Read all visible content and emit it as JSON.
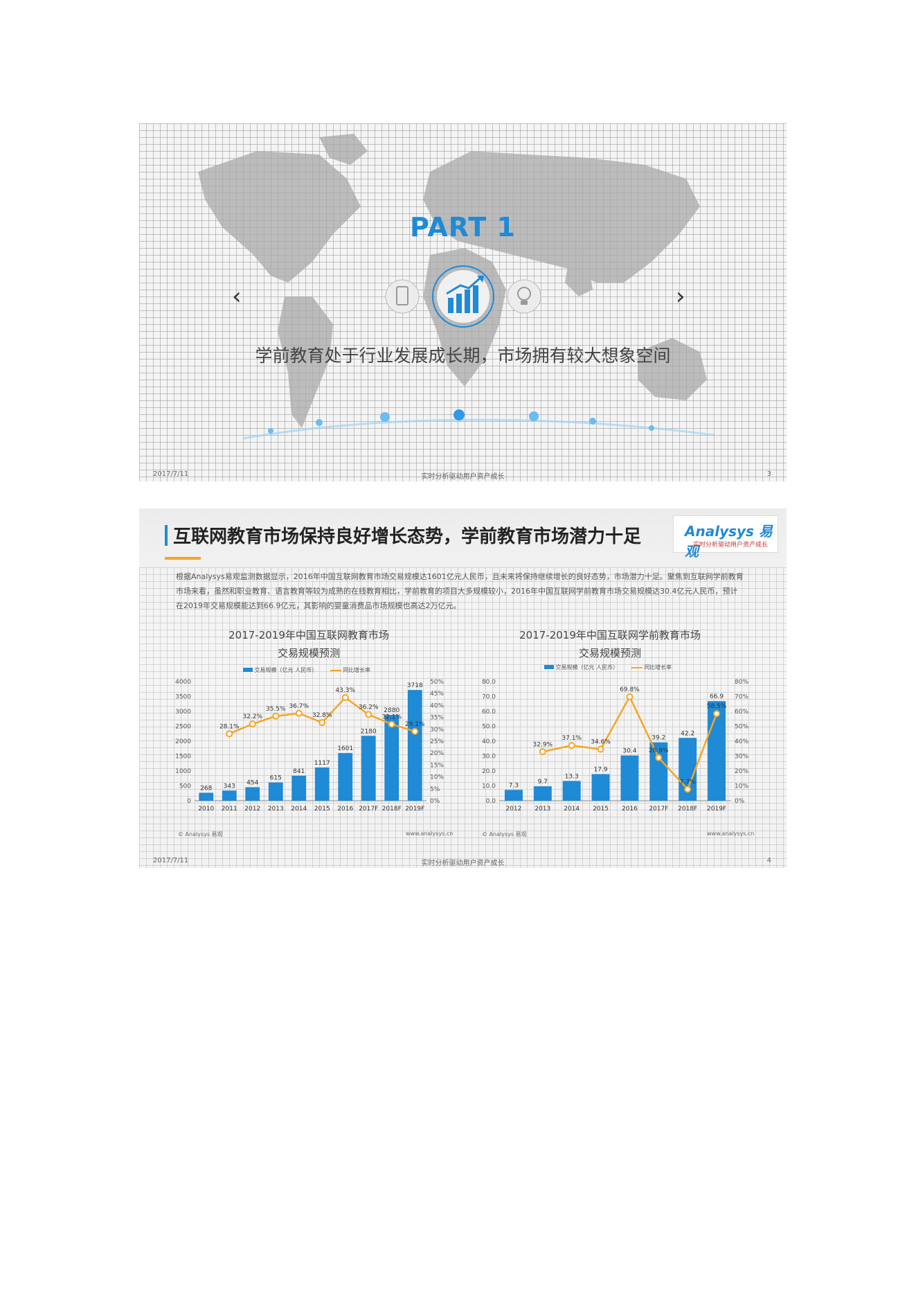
{
  "slide1": {
    "part_title": "PART 1",
    "subtitle": "学前教育处于行业发展成长期，市场拥有较大想象空间",
    "footer": {
      "date": "2017/7/11",
      "slogan": "实时分析驱动用户资产成长",
      "page": "3"
    },
    "icons": [
      "chevron-left-icon",
      "mobile-icon",
      "bar-chart-icon",
      "lightbulb-icon",
      "chevron-right-icon"
    ],
    "arrow_left": "‹",
    "arrow_right": "›"
  },
  "slide2": {
    "title": "互联网教育市场保持良好增长态势，学前教育市场潜力十足",
    "logo": {
      "name": "Analysys 易观",
      "tagline": "实时分析驱动用户资产成长"
    },
    "body": "根据Analysys易观监测数据显示，2016年中国互联网教育市场交易规模达1601亿元人民币，且未来将保持继续增长的良好态势，市场潜力十足。聚焦到互联网学前教育市场来看，虽然和职业教育、语言教育等较为成熟的在线教育相比，学前教育的项目大多规模较小，2016年中国互联网学前教育市场交易规模达30.4亿元人民币，预计在2019年交易规模能达到66.9亿元，其影响的婴童消费品市场规模也高达2万亿元。",
    "footer": {
      "date": "2017/7/11",
      "slogan": "实时分析驱动用户资产成长",
      "page": "4"
    },
    "accent": "#1f8ad6",
    "line_color": "#f5a623"
  },
  "chart_data": [
    {
      "type": "bar",
      "title_line1": "2017-2019年中国互联网教育市场",
      "title_line2": "交易规模预测",
      "legend_bar": "交易规模（亿元 人民币）",
      "legend_line": "同比增长率",
      "categories": [
        "2010",
        "2011",
        "2012",
        "2013",
        "2014",
        "2015",
        "2016",
        "2017F",
        "2018F",
        "2019F"
      ],
      "series": [
        {
          "name": "交易规模（亿元 人民币）",
          "values": [
            268,
            343,
            454,
            615,
            841,
            1117,
            1601,
            2180,
            2880,
            3718
          ],
          "labels": [
            "268",
            "343",
            "454",
            "615",
            "841",
            "1117",
            "1601",
            "2180",
            "2880",
            "3718"
          ]
        },
        {
          "name": "同比增长率",
          "values": [
            null,
            28.1,
            32.2,
            35.5,
            36.7,
            32.8,
            43.3,
            36.2,
            32.1,
            29.1
          ],
          "labels": [
            "",
            "28.1%",
            "32.2%",
            "35.5%",
            "36.7%",
            "32.8%",
            "43.3%",
            "36.2%",
            "32.1%",
            "29.1%"
          ]
        }
      ],
      "ylim": [
        0,
        4000
      ],
      "yticks": [
        "0",
        "500",
        "1000",
        "1500",
        "2000",
        "2500",
        "3000",
        "3500",
        "4000"
      ],
      "y2lim": [
        0,
        50
      ],
      "y2ticks": [
        "0%",
        "5%",
        "10%",
        "15%",
        "20%",
        "25%",
        "30%",
        "35%",
        "40%",
        "45%",
        "50%"
      ],
      "source": "© Analysys 易观",
      "website": "www.analysys.cn"
    },
    {
      "type": "bar",
      "title_line1": "2017-2019年中国互联网学前教育市场",
      "title_line2": "交易规模预测",
      "legend_bar": "交易规模（亿元 人民币）",
      "legend_line": "同比增长率",
      "categories": [
        "2012",
        "2013",
        "2014",
        "2015",
        "2016",
        "2017F",
        "2018F",
        "2019F"
      ],
      "series": [
        {
          "name": "交易规模（亿元 人民币）",
          "values": [
            7.3,
            9.7,
            13.3,
            17.9,
            30.4,
            39.2,
            42.2,
            66.9
          ],
          "labels": [
            "7.3",
            "9.7",
            "13.3",
            "17.9",
            "30.4",
            "39.2",
            "42.2",
            "66.9"
          ]
        },
        {
          "name": "同比增长率",
          "values": [
            null,
            32.9,
            37.1,
            34.6,
            69.8,
            28.9,
            7.7,
            58.5
          ],
          "labels": [
            "",
            "32.9%",
            "37.1%",
            "34.6%",
            "69.8%",
            "28.9%",
            "7.7%",
            "58.5%"
          ]
        }
      ],
      "ylim": [
        0,
        80
      ],
      "yticks": [
        "0.0",
        "10.0",
        "20.0",
        "30.0",
        "40.0",
        "50.0",
        "60.0",
        "70.0",
        "80.0"
      ],
      "y2lim": [
        0,
        80
      ],
      "y2ticks": [
        "0%",
        "10%",
        "20%",
        "30%",
        "40%",
        "50%",
        "60%",
        "70%",
        "80%"
      ],
      "source": "© Analysys 易观",
      "website": "www.analysys.cn"
    }
  ]
}
